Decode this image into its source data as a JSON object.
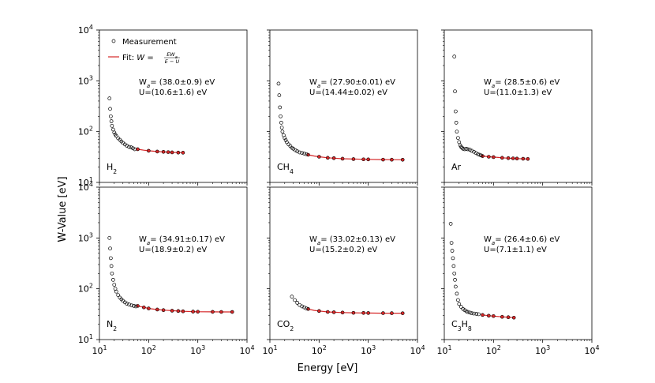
{
  "figure": {
    "ylabel": "W-Value [eV]",
    "xlabel": "Energy [eV]",
    "legend": {
      "measurement_label": "Measurement",
      "fit_label_prefix": "Fit: ",
      "fit_formula_lhs": "W =",
      "fit_formula_num": "EW",
      "fit_formula_num_sub": "a",
      "fit_formula_den": "E − U"
    },
    "colors": {
      "measurement": "#000000",
      "fit": "#d62728",
      "fit_marker_fill": "#d62728"
    }
  },
  "chart_data": [
    {
      "type": "scatter",
      "gas": "H2",
      "gas_label": [
        {
          "t": "H"
        },
        {
          "t": "2",
          "sub": true
        }
      ],
      "wa_text": "(38.0±0.9) eV",
      "u_text": "U=(10.6±1.6) eV",
      "xscale": "log",
      "yscale": "log",
      "xlim": [
        10,
        10000
      ],
      "ylim": [
        10,
        10000
      ],
      "measurement": {
        "x": [
          16,
          16.5,
          17,
          17.5,
          18,
          19,
          20,
          21,
          22,
          24,
          26,
          28,
          30,
          33,
          36,
          40,
          44,
          48,
          52
        ],
        "y": [
          450,
          280,
          200,
          160,
          130,
          110,
          96,
          88,
          82,
          74,
          69,
          64,
          60,
          56,
          53,
          50,
          49,
          47,
          45
        ]
      },
      "fit": {
        "x": [
          60,
          80,
          100,
          150,
          200,
          300,
          400,
          500
        ],
        "y": [
          45,
          43,
          42,
          40.5,
          40,
          39,
          38.7,
          38.5
        ]
      },
      "fit_points": {
        "x": [
          60,
          100,
          150,
          200,
          250,
          300,
          400,
          500
        ],
        "y": [
          45,
          42,
          40.5,
          40,
          39.5,
          39,
          38.7,
          38.5
        ]
      }
    },
    {
      "type": "scatter",
      "gas": "CH4",
      "gas_label": [
        {
          "t": "CH"
        },
        {
          "t": "4",
          "sub": true
        }
      ],
      "wa_text": "(27.90±0.01) eV",
      "u_text": "U=(14.44±0.02) eV",
      "xscale": "log",
      "yscale": "log",
      "xlim": [
        10,
        10000
      ],
      "ylim": [
        10,
        10000
      ],
      "measurement": {
        "x": [
          15,
          15.5,
          16,
          16.5,
          17,
          17.5,
          18,
          19,
          20,
          21,
          22,
          24,
          26,
          28,
          30,
          33,
          36,
          40,
          45,
          50,
          55
        ],
        "y": [
          880,
          520,
          300,
          200,
          150,
          120,
          100,
          85,
          75,
          68,
          62,
          56,
          52,
          48,
          46,
          43,
          41,
          39,
          38,
          37,
          36
        ]
      },
      "fit": {
        "x": [
          60,
          80,
          100,
          150,
          200,
          300,
          500,
          800,
          1000,
          2000,
          3000,
          5000
        ],
        "y": [
          35,
          33,
          32,
          30.5,
          30,
          29.3,
          28.8,
          28.5,
          28.4,
          28.1,
          28,
          27.95
        ]
      },
      "fit_points": {
        "x": [
          60,
          100,
          150,
          200,
          300,
          500,
          800,
          1000,
          2000,
          3000,
          5000
        ],
        "y": [
          35,
          32,
          30.5,
          30,
          29.3,
          28.8,
          28.5,
          28.4,
          28.1,
          28,
          27.95
        ]
      }
    },
    {
      "type": "scatter",
      "gas": "Ar",
      "gas_label": [
        {
          "t": "Ar"
        }
      ],
      "wa_text": "(28.5±0.6) eV",
      "u_text": "U=(11.0±1.3) eV",
      "xscale": "log",
      "yscale": "log",
      "xlim": [
        10,
        10000
      ],
      "ylim": [
        10,
        10000
      ],
      "measurement": {
        "x": [
          16,
          16.5,
          17,
          17.5,
          18,
          19,
          20,
          21,
          22,
          23,
          24,
          26,
          28,
          30,
          33,
          36,
          40,
          44,
          48,
          52,
          56
        ],
        "y": [
          3000,
          620,
          250,
          150,
          100,
          75,
          62,
          54,
          50,
          48,
          46,
          45,
          46,
          45,
          44,
          42,
          40,
          38,
          36,
          35,
          34
        ]
      },
      "fit": {
        "x": [
          60,
          80,
          100,
          150,
          200,
          300,
          400,
          500
        ],
        "y": [
          33,
          32,
          31.5,
          30.5,
          30,
          29.5,
          29.2,
          29
        ]
      },
      "fit_points": {
        "x": [
          60,
          80,
          100,
          150,
          200,
          250,
          300,
          400,
          500
        ],
        "y": [
          33,
          32,
          31.5,
          30.5,
          30,
          29.8,
          29.5,
          29.2,
          29
        ]
      }
    },
    {
      "type": "scatter",
      "gas": "N2",
      "gas_label": [
        {
          "t": "N"
        },
        {
          "t": "2",
          "sub": true
        }
      ],
      "wa_text": "(34.91±0.17) eV",
      "u_text": "U=(18.9±0.2) eV",
      "xscale": "log",
      "yscale": "log",
      "xlim": [
        10,
        10000
      ],
      "ylim": [
        10,
        10000
      ],
      "measurement": {
        "x": [
          16,
          16.5,
          17,
          17.5,
          18,
          19,
          20,
          21,
          22,
          24,
          26,
          28,
          30,
          33,
          36,
          40,
          45,
          50,
          55
        ],
        "y": [
          1000,
          620,
          400,
          280,
          200,
          150,
          120,
          100,
          88,
          75,
          67,
          62,
          58,
          54,
          51,
          49,
          47,
          46,
          45
        ]
      },
      "fit": {
        "x": [
          60,
          80,
          100,
          150,
          200,
          300,
          500,
          800,
          1000,
          2000,
          3000,
          5000
        ],
        "y": [
          46,
          43,
          41,
          39,
          38,
          37,
          36,
          35.5,
          35.3,
          35.1,
          35,
          34.95
        ]
      },
      "fit_points": {
        "x": [
          60,
          80,
          100,
          150,
          200,
          300,
          400,
          500,
          800,
          1000,
          2000,
          3000,
          5000
        ],
        "y": [
          46,
          43,
          41,
          39,
          38,
          37,
          36.5,
          36,
          35.5,
          35.3,
          35.1,
          35,
          34.95
        ]
      }
    },
    {
      "type": "scatter",
      "gas": "CO2",
      "gas_label": [
        {
          "t": "CO"
        },
        {
          "t": "2",
          "sub": true
        }
      ],
      "wa_text": "(33.02±0.13) eV",
      "u_text": "U=(15.2±0.2) eV",
      "xscale": "log",
      "yscale": "log",
      "xlim": [
        10,
        10000
      ],
      "ylim": [
        10,
        10000
      ],
      "measurement": {
        "x": [
          28,
          32,
          36,
          40,
          45,
          50,
          55
        ],
        "y": [
          70,
          60,
          53,
          48,
          45,
          43,
          41
        ]
      },
      "fit": {
        "x": [
          60,
          80,
          100,
          150,
          200,
          300,
          500,
          800,
          1000,
          2000,
          3000,
          5000
        ],
        "y": [
          40,
          37.5,
          36.5,
          35,
          34.5,
          34,
          33.6,
          33.4,
          33.3,
          33.1,
          33.05,
          33
        ]
      },
      "fit_points": {
        "x": [
          60,
          100,
          150,
          200,
          300,
          500,
          800,
          1000,
          2000,
          3000,
          5000
        ],
        "y": [
          40,
          36.5,
          35,
          34.5,
          34,
          33.6,
          33.4,
          33.3,
          33.1,
          33.05,
          33
        ]
      }
    },
    {
      "type": "scatter",
      "gas": "C3H8",
      "gas_label": [
        {
          "t": "C"
        },
        {
          "t": "3",
          "sub": true
        },
        {
          "t": "H"
        },
        {
          "t": "8",
          "sub": true
        }
      ],
      "wa_text": "(26.4±0.6) eV",
      "u_text": "U=(7.1±1.1) eV",
      "xscale": "log",
      "yscale": "log",
      "xlim": [
        10,
        10000
      ],
      "ylim": [
        10,
        10000
      ],
      "measurement": {
        "x": [
          13.5,
          14,
          14.5,
          15,
          15.5,
          16,
          16.5,
          17,
          18,
          19,
          20,
          22,
          24,
          26,
          28,
          30,
          33,
          36,
          40,
          45,
          50
        ],
        "y": [
          1900,
          800,
          560,
          400,
          280,
          200,
          150,
          110,
          80,
          60,
          50,
          44,
          40,
          38,
          36,
          35,
          34,
          33,
          32.5,
          32,
          31.5
        ]
      },
      "fit": {
        "x": [
          60,
          80,
          100,
          150,
          200,
          260
        ],
        "y": [
          30.5,
          29.5,
          29,
          28,
          27.5,
          27
        ]
      },
      "fit_points": {
        "x": [
          60,
          80,
          100,
          150,
          200,
          260
        ],
        "y": [
          30.5,
          29.5,
          29,
          28,
          27.5,
          27
        ]
      }
    }
  ]
}
